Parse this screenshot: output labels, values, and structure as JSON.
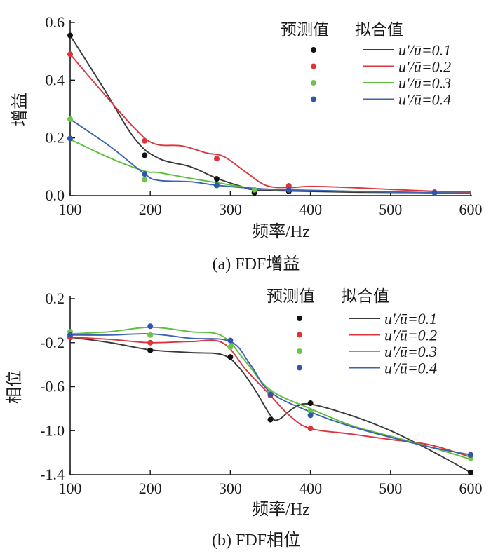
{
  "chart_data": [
    {
      "type": "line",
      "caption": "(a) FDF增益",
      "xlabel": "频率/Hz",
      "ylabel": "增益",
      "xlim": [
        100,
        600
      ],
      "ylim": [
        0,
        0.6
      ],
      "x_ticks": [
        "100",
        "200",
        "300",
        "400",
        "500",
        "600"
      ],
      "y_ticks": [
        "0.0",
        "0.2",
        "0.4",
        "0.6"
      ],
      "legend_headers": [
        "预测值",
        "拟合值"
      ],
      "legend_position": "top-right",
      "series": [
        {
          "name": "u'/ū=0.1",
          "color": "#3a3a3a",
          "marker_color": "#111111",
          "points": [
            [
              100,
              0.555
            ],
            [
              193,
              0.14
            ],
            [
              283,
              0.058
            ],
            [
              330,
              0.01
            ],
            [
              373,
              0.015
            ],
            [
              555,
              0.01
            ]
          ],
          "fit": [
            [
              100,
              0.555
            ],
            [
              140,
              0.38
            ],
            [
              180,
              0.2
            ],
            [
              210,
              0.13
            ],
            [
              250,
              0.1
            ],
            [
              283,
              0.06
            ],
            [
              310,
              0.035
            ],
            [
              330,
              0.02
            ],
            [
              373,
              0.016
            ],
            [
              450,
              0.012
            ],
            [
              555,
              0.01
            ],
            [
              600,
              0.008
            ]
          ]
        },
        {
          "name": "u'/ū=0.2",
          "color": "#d9363e",
          "marker_color": "#e0323a",
          "points": [
            [
              100,
              0.49
            ],
            [
              193,
              0.19
            ],
            [
              283,
              0.128
            ],
            [
              373,
              0.034
            ],
            [
              555,
              0.012
            ]
          ],
          "fit": [
            [
              100,
              0.49
            ],
            [
              140,
              0.36
            ],
            [
              180,
              0.235
            ],
            [
              205,
              0.18
            ],
            [
              240,
              0.172
            ],
            [
              270,
              0.148
            ],
            [
              292,
              0.135
            ],
            [
              320,
              0.08
            ],
            [
              345,
              0.035
            ],
            [
              373,
              0.028
            ],
            [
              400,
              0.032
            ],
            [
              450,
              0.028
            ],
            [
              555,
              0.015
            ],
            [
              600,
              0.013
            ]
          ]
        },
        {
          "name": "u'/ū=0.3",
          "color": "#5bbf3a",
          "marker_color": "#6cc44a",
          "points": [
            [
              100,
              0.265
            ],
            [
              193,
              0.055
            ],
            [
              283,
              0.035
            ],
            [
              330,
              0.02
            ],
            [
              373,
              0.02
            ],
            [
              555,
              0.01
            ]
          ],
          "fit": [
            [
              100,
              0.195
            ],
            [
              150,
              0.13
            ],
            [
              193,
              0.085
            ],
            [
              210,
              0.08
            ],
            [
              250,
              0.06
            ],
            [
              283,
              0.045
            ],
            [
              330,
              0.025
            ],
            [
              373,
              0.02
            ],
            [
              450,
              0.015
            ],
            [
              555,
              0.01
            ],
            [
              600,
              0.008
            ]
          ]
        },
        {
          "name": "u'/ū=0.4",
          "color": "#3f62b0",
          "marker_color": "#2f55b0",
          "points": [
            [
              100,
              0.198
            ],
            [
              193,
              0.075
            ],
            [
              283,
              0.036
            ],
            [
              373,
              0.02
            ],
            [
              555,
              0.01
            ]
          ],
          "fit": [
            [
              100,
              0.265
            ],
            [
              150,
              0.17
            ],
            [
              193,
              0.075
            ],
            [
              210,
              0.053
            ],
            [
              250,
              0.048
            ],
            [
              283,
              0.036
            ],
            [
              330,
              0.025
            ],
            [
              373,
              0.02
            ],
            [
              450,
              0.015
            ],
            [
              555,
              0.01
            ],
            [
              600,
              0.008
            ]
          ]
        }
      ]
    },
    {
      "type": "line",
      "caption": "(b) FDF相位",
      "xlabel": "频率/Hz",
      "ylabel": "相位",
      "xlim": [
        100,
        600
      ],
      "ylim": [
        -1.4,
        0.2
      ],
      "x_ticks": [
        "100",
        "200",
        "300",
        "400",
        "500",
        "600"
      ],
      "y_ticks": [
        "-1.4",
        "-1.0",
        "-0.6",
        "-0.2",
        "0.2"
      ],
      "legend_headers": [
        "预测值",
        "拟合值"
      ],
      "legend_position": "top-right",
      "series": [
        {
          "name": "u'/ū=0.1",
          "color": "#3a3a3a",
          "marker_color": "#111111",
          "points": [
            [
              100,
              -0.15
            ],
            [
              200,
              -0.27
            ],
            [
              300,
              -0.33
            ],
            [
              350,
              -0.9
            ],
            [
              400,
              -0.75
            ],
            [
              600,
              -1.38
            ]
          ],
          "fit": [
            [
              100,
              -0.15
            ],
            [
              150,
              -0.2
            ],
            [
              200,
              -0.265
            ],
            [
              250,
              -0.29
            ],
            [
              290,
              -0.31
            ],
            [
              310,
              -0.42
            ],
            [
              330,
              -0.62
            ],
            [
              350,
              -0.86
            ],
            [
              360,
              -0.9
            ],
            [
              380,
              -0.79
            ],
            [
              400,
              -0.76
            ],
            [
              450,
              -0.86
            ],
            [
              500,
              -1.0
            ],
            [
              550,
              -1.18
            ],
            [
              600,
              -1.38
            ]
          ]
        },
        {
          "name": "u'/ū=0.2",
          "color": "#d9363e",
          "marker_color": "#e0323a",
          "points": [
            [
              100,
              -0.15
            ],
            [
              200,
              -0.2
            ],
            [
              300,
              -0.18
            ],
            [
              350,
              -0.68
            ],
            [
              400,
              -0.98
            ],
            [
              600,
              -1.22
            ]
          ],
          "fit": [
            [
              100,
              -0.15
            ],
            [
              150,
              -0.17
            ],
            [
              200,
              -0.2
            ],
            [
              250,
              -0.19
            ],
            [
              290,
              -0.2
            ],
            [
              320,
              -0.45
            ],
            [
              350,
              -0.68
            ],
            [
              375,
              -0.87
            ],
            [
              400,
              -0.98
            ],
            [
              450,
              -1.03
            ],
            [
              500,
              -1.08
            ],
            [
              550,
              -1.13
            ],
            [
              600,
              -1.24
            ]
          ]
        },
        {
          "name": "u'/ū=0.3",
          "color": "#5bbf3a",
          "marker_color": "#6cc44a",
          "points": [
            [
              100,
              -0.1
            ],
            [
              200,
              -0.13
            ],
            [
              300,
              -0.24
            ],
            [
              350,
              -0.65
            ],
            [
              400,
              -0.82
            ],
            [
              600,
              -1.25
            ]
          ],
          "fit": [
            [
              100,
              -0.12
            ],
            [
              150,
              -0.1
            ],
            [
              200,
              -0.06
            ],
            [
              250,
              -0.1
            ],
            [
              290,
              -0.14
            ],
            [
              320,
              -0.38
            ],
            [
              350,
              -0.63
            ],
            [
              400,
              -0.8
            ],
            [
              450,
              -0.95
            ],
            [
              500,
              -1.05
            ],
            [
              550,
              -1.15
            ],
            [
              600,
              -1.26
            ]
          ]
        },
        {
          "name": "u'/ū=0.4",
          "color": "#3f62b0",
          "marker_color": "#2f55b0",
          "points": [
            [
              100,
              -0.13
            ],
            [
              200,
              -0.05
            ],
            [
              300,
              -0.18
            ],
            [
              350,
              -0.67
            ],
            [
              400,
              -0.86
            ],
            [
              600,
              -1.22
            ]
          ],
          "fit": [
            [
              100,
              -0.13
            ],
            [
              150,
              -0.13
            ],
            [
              200,
              -0.12
            ],
            [
              250,
              -0.16
            ],
            [
              300,
              -0.19
            ],
            [
              325,
              -0.4
            ],
            [
              350,
              -0.65
            ],
            [
              400,
              -0.83
            ],
            [
              450,
              -0.96
            ],
            [
              500,
              -1.06
            ],
            [
              550,
              -1.15
            ],
            [
              600,
              -1.22
            ]
          ]
        }
      ]
    }
  ]
}
